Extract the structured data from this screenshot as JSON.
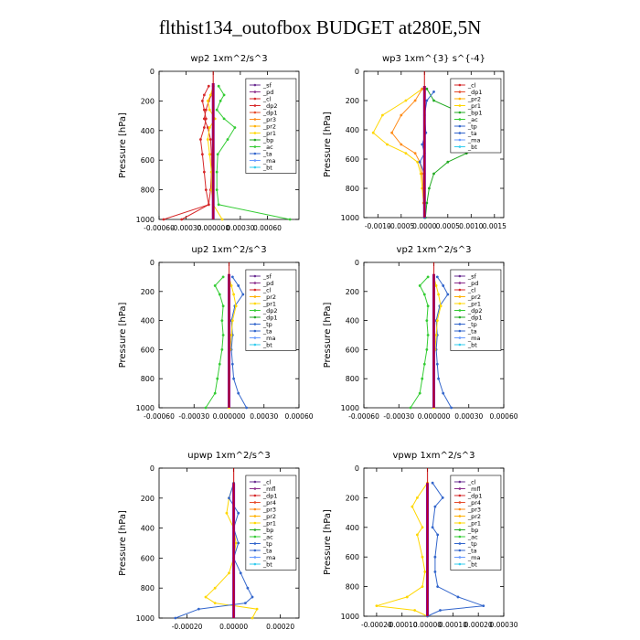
{
  "title": "flthist134_outofbox  BUDGET at280E,5N",
  "chart_data": [
    {
      "type": "line",
      "title": "wp2   1xm^2/s^3",
      "ylabel": "Pressure [hPa]",
      "ylim": [
        1000,
        0
      ],
      "yticks": [
        0,
        200,
        400,
        600,
        800,
        1000
      ],
      "xlim": [
        -0.0006,
        0.00095
      ],
      "xticks": [
        "-0.00060",
        "-0.00030",
        "0.000000",
        "0.00030",
        "0.00060"
      ],
      "xtick_values": [
        -0.0006,
        -0.0003,
        0,
        0.0003,
        0.0006
      ],
      "legend": [
        "_sf",
        "_pd",
        "_cl",
        "_dp2",
        "_dp1",
        "_pr3",
        "_pr2",
        "_pr1",
        "_bp",
        "_ac",
        "_ta",
        "_ma",
        "_bt"
      ],
      "legend_colors": [
        "#6a2c91",
        "#8b2c8b",
        "#d62728",
        "#d62728",
        "#e64a2a",
        "#ff8c1a",
        "#ffb000",
        "#ffd700",
        "#22aa22",
        "#33cc33",
        "#3366cc",
        "#6699ff",
        "#33ccee"
      ],
      "series": [
        {
          "name": "_dp1",
          "color": "#d62728",
          "x": [
            -5e-05,
            -0.0001,
            -0.00012,
            -0.0001,
            -8e-05,
            -0.0001,
            -0.00014,
            -0.00012,
            -0.0001,
            -8e-05,
            -5e-05,
            -0.00055
          ],
          "y": [
            100,
            160,
            200,
            260,
            320,
            380,
            460,
            560,
            680,
            800,
            900,
            1000
          ]
        },
        {
          "name": "_dp2",
          "color": "#d62728",
          "x": [
            0,
            -2e-05,
            -5e-05,
            -8e-05,
            -0.0001,
            -6e-05,
            -3e-05,
            -2e-05,
            -2e-05,
            -3e-05,
            -5e-05,
            -0.00035
          ],
          "y": [
            100,
            160,
            200,
            260,
            320,
            380,
            460,
            560,
            680,
            800,
            900,
            1000
          ]
        },
        {
          "name": "_pr1",
          "color": "#ffd700",
          "x": [
            0,
            -3e-05,
            -6e-05,
            -4e-05,
            2e-05,
            -4e-05,
            -6e-05,
            -4e-05,
            -2e-05,
            -2e-05,
            0,
            0.0001
          ],
          "y": [
            100,
            160,
            200,
            260,
            320,
            380,
            460,
            560,
            680,
            800,
            900,
            1000
          ]
        },
        {
          "name": "_ac",
          "color": "#33cc33",
          "x": [
            6e-05,
            0.00012,
            8e-05,
            4e-05,
            0.00012,
            0.00024,
            0.00016,
            5e-05,
            4e-05,
            4e-05,
            6e-05,
            0.00085
          ],
          "y": [
            100,
            160,
            200,
            260,
            320,
            380,
            460,
            560,
            680,
            800,
            900,
            1000
          ]
        },
        {
          "name": "_bt",
          "color": "#8b008b",
          "x": [
            0,
            0,
            0,
            0,
            0,
            0,
            0,
            0,
            0,
            0,
            0,
            0
          ],
          "y": [
            80,
            160,
            200,
            260,
            320,
            380,
            460,
            560,
            680,
            800,
            900,
            1000
          ]
        }
      ]
    },
    {
      "type": "line",
      "title": "wp3   1xm^{3} s^{-4}",
      "ylabel": "Pressure [hPa]",
      "ylim": [
        1000,
        0
      ],
      "yticks": [
        0,
        200,
        400,
        600,
        800,
        1000
      ],
      "xlim": [
        -0.0013,
        0.0017
      ],
      "xticks": [
        "-0.0010",
        "-0.0005",
        "0.0000",
        "0.0005",
        "0.0010",
        "0.0015"
      ],
      "xtick_values": [
        -0.001,
        -0.0005,
        0,
        0.0005,
        0.001,
        0.0015
      ],
      "legend": [
        "_cl",
        "_dp1",
        "_pr2",
        "_pr1",
        "_bp1",
        "_ac",
        "_tp",
        "_ta",
        "_ma",
        "_bt"
      ],
      "legend_colors": [
        "#d62728",
        "#e64a2a",
        "#ffb000",
        "#ffd700",
        "#22aa22",
        "#33cc33",
        "#3366cc",
        "#3366cc",
        "#6699ff",
        "#33ccee"
      ],
      "series": [
        {
          "name": "_pr1",
          "color": "#ffd700",
          "x": [
            -5e-05,
            -0.0004,
            -0.0009,
            -0.0011,
            -0.0008,
            -0.0004,
            -0.00015,
            -8e-05,
            -5e-05,
            -2e-05,
            0
          ],
          "y": [
            120,
            200,
            300,
            420,
            500,
            560,
            620,
            700,
            800,
            900,
            1000
          ]
        },
        {
          "name": "_pr2",
          "color": "#ff8c1a",
          "x": [
            -5e-05,
            -0.0002,
            -0.0005,
            -0.0007,
            -0.0005,
            -0.0002,
            -0.0001,
            -5e-05,
            -3e-05,
            -2e-05,
            0
          ],
          "y": [
            120,
            200,
            300,
            420,
            500,
            560,
            620,
            700,
            800,
            900,
            1000
          ]
        },
        {
          "name": "_ac",
          "color": "#22aa22",
          "x": [
            5e-05,
            0.0002,
            0.0009,
            0.0015,
            0.0012,
            0.0009,
            0.0005,
            0.0002,
            0.0001,
            5e-05,
            2e-05
          ],
          "y": [
            120,
            200,
            300,
            450,
            520,
            560,
            620,
            700,
            800,
            900,
            1000
          ]
        },
        {
          "name": "_ta",
          "color": "#3366cc",
          "x": [
            0.0002,
            5e-05,
            0,
            3e-05,
            -5e-05,
            0,
            -0.0001,
            0,
            0,
            0,
            0
          ],
          "y": [
            140,
            200,
            300,
            420,
            500,
            560,
            620,
            700,
            800,
            900,
            1000
          ]
        },
        {
          "name": "_bt",
          "color": "#8b008b",
          "x": [
            0,
            0,
            0,
            0,
            0,
            0,
            0,
            0,
            0,
            0,
            0
          ],
          "y": [
            100,
            200,
            300,
            420,
            500,
            560,
            620,
            700,
            800,
            900,
            1000
          ]
        }
      ]
    },
    {
      "type": "line",
      "title": "up2   1xm^2/s^3",
      "ylabel": "Pressure [hPa]",
      "ylim": [
        1000,
        0
      ],
      "yticks": [
        0,
        200,
        400,
        600,
        800,
        1000
      ],
      "xlim": [
        -0.0006,
        0.0006
      ],
      "xticks": [
        "-0.00060",
        "-0.00030",
        "0.000000",
        "0.00030",
        "0.00060"
      ],
      "xtick_values": [
        -0.0006,
        -0.0003,
        0,
        0.0003,
        0.0006
      ],
      "legend": [
        "_sf",
        "_pd",
        "_cl",
        "_pr2",
        "_pr1",
        "_dp2",
        "_dp1",
        "_tp",
        "_ta",
        "_ma",
        "_bt"
      ],
      "legend_colors": [
        "#6a2c91",
        "#8b2c8b",
        "#d62728",
        "#ffb000",
        "#ffd700",
        "#33cc33",
        "#22aa22",
        "#3366cc",
        "#3366cc",
        "#6699ff",
        "#33ccee"
      ],
      "series": [
        {
          "name": "_dp1",
          "color": "#33cc33",
          "x": [
            -5e-05,
            -0.00012,
            -8e-05,
            -5e-05,
            -6e-05,
            -5e-05,
            -6e-05,
            -8e-05,
            -0.0001,
            -0.00012,
            -0.0002
          ],
          "y": [
            100,
            160,
            220,
            300,
            400,
            500,
            600,
            700,
            800,
            900,
            1000
          ]
        },
        {
          "name": "_tp",
          "color": "#3366cc",
          "x": [
            3e-05,
            8e-05,
            0.00012,
            5e-05,
            2e-05,
            3e-05,
            2e-05,
            3e-05,
            4e-05,
            8e-05,
            0.00015
          ],
          "y": [
            100,
            160,
            220,
            300,
            400,
            500,
            600,
            700,
            800,
            900,
            1000
          ]
        },
        {
          "name": "_pr1",
          "color": "#ffd700",
          "x": [
            0,
            2e-05,
            4e-05,
            6e-05,
            3e-05,
            2e-05,
            1e-05,
            0,
            0,
            0,
            0
          ],
          "y": [
            100,
            160,
            220,
            300,
            400,
            500,
            600,
            700,
            800,
            900,
            1000
          ]
        },
        {
          "name": "_bt",
          "color": "#8b008b",
          "x": [
            0,
            0,
            0,
            0,
            0,
            0,
            0,
            0,
            0,
            0,
            0
          ],
          "y": [
            80,
            160,
            220,
            300,
            400,
            500,
            600,
            700,
            800,
            900,
            1000
          ]
        }
      ]
    },
    {
      "type": "line",
      "title": "vp2   1xm^2/s^3",
      "ylabel": "Pressure [hPa]",
      "ylim": [
        1000,
        0
      ],
      "yticks": [
        0,
        200,
        400,
        600,
        800,
        1000
      ],
      "xlim": [
        -0.0006,
        0.0006
      ],
      "xticks": [
        "-0.00060",
        "-0.00030",
        "0.000000",
        "0.00030",
        "0.00060"
      ],
      "xtick_values": [
        -0.0006,
        -0.0003,
        0,
        0.0003,
        0.0006
      ],
      "legend": [
        "_sf",
        "_pd",
        "_cl",
        "_pr2",
        "_pr1",
        "_dp2",
        "_dp1",
        "_tp",
        "_ta",
        "_ma",
        "_bt"
      ],
      "legend_colors": [
        "#6a2c91",
        "#8b2c8b",
        "#d62728",
        "#ffb000",
        "#ffd700",
        "#33cc33",
        "#22aa22",
        "#3366cc",
        "#3366cc",
        "#6699ff",
        "#33ccee"
      ],
      "series": [
        {
          "name": "_dp1",
          "color": "#33cc33",
          "x": [
            -5e-05,
            -0.00012,
            -8e-05,
            -5e-05,
            -6e-05,
            -5e-05,
            -6e-05,
            -8e-05,
            -0.0001,
            -0.00012,
            -0.0002
          ],
          "y": [
            100,
            160,
            220,
            300,
            400,
            500,
            600,
            700,
            800,
            900,
            1000
          ]
        },
        {
          "name": "_tp",
          "color": "#3366cc",
          "x": [
            3e-05,
            8e-05,
            0.00012,
            5e-05,
            2e-05,
            3e-05,
            2e-05,
            3e-05,
            4e-05,
            8e-05,
            0.00015
          ],
          "y": [
            100,
            160,
            220,
            300,
            400,
            500,
            600,
            700,
            800,
            900,
            1000
          ]
        },
        {
          "name": "_pr1",
          "color": "#ffd700",
          "x": [
            0,
            2e-05,
            4e-05,
            6e-05,
            3e-05,
            2e-05,
            1e-05,
            0,
            0,
            0,
            0
          ],
          "y": [
            100,
            160,
            220,
            300,
            400,
            500,
            600,
            700,
            800,
            900,
            1000
          ]
        },
        {
          "name": "_bt",
          "color": "#8b008b",
          "x": [
            0,
            0,
            0,
            0,
            0,
            0,
            0,
            0,
            0,
            0,
            0
          ],
          "y": [
            80,
            160,
            220,
            300,
            400,
            500,
            600,
            700,
            800,
            900,
            1000
          ]
        }
      ]
    },
    {
      "type": "line",
      "title": "upwp   1xm^2/s^3",
      "ylabel": "Pressure [hPa]",
      "ylim": [
        1000,
        0
      ],
      "yticks": [
        0,
        200,
        400,
        600,
        800,
        1000
      ],
      "xlim": [
        -0.00032,
        0.00028
      ],
      "xticks": [
        "-0.00020",
        "0.00000",
        "0.00020"
      ],
      "xtick_values": [
        -0.0002,
        0,
        0.0002
      ],
      "legend": [
        "_cl",
        "_mfl",
        "_dp1",
        "_pr4",
        "_pr3",
        "_pr2",
        "_pr1",
        "_bp",
        "_ac",
        "_tp",
        "_ta",
        "_ma",
        "_bt"
      ],
      "legend_colors": [
        "#6a2c91",
        "#8b2c8b",
        "#d62728",
        "#e64a2a",
        "#ff8c1a",
        "#ffb000",
        "#ffd700",
        "#22aa22",
        "#33cc33",
        "#3366cc",
        "#3366cc",
        "#6699ff",
        "#33ccee"
      ],
      "series": [
        {
          "name": "_pr1",
          "color": "#ffd700",
          "x": [
            0,
            -2e-05,
            -3e-05,
            0,
            1e-05,
            0,
            -2e-05,
            -8e-05,
            -0.00012,
            -8e-05,
            0.0001,
            8e-05
          ],
          "y": [
            100,
            200,
            300,
            400,
            500,
            600,
            700,
            800,
            860,
            900,
            940,
            1000
          ]
        },
        {
          "name": "_tp",
          "color": "#3366cc",
          "x": [
            0,
            -2e-05,
            2e-05,
            0,
            2e-05,
            0,
            3e-05,
            6e-05,
            8e-05,
            5e-05,
            -0.00015,
            -0.00025
          ],
          "y": [
            100,
            200,
            300,
            400,
            500,
            600,
            700,
            800,
            860,
            900,
            940,
            1000
          ]
        },
        {
          "name": "_bt",
          "color": "#8b008b",
          "x": [
            0,
            0,
            0,
            0,
            0,
            0,
            0,
            0,
            0,
            0,
            0,
            0
          ],
          "y": [
            100,
            200,
            300,
            400,
            500,
            600,
            700,
            800,
            860,
            900,
            940,
            1000
          ]
        }
      ]
    },
    {
      "type": "line",
      "title": "vpwp   1xm^2/s^3",
      "ylabel": "Pressure [hPa]",
      "ylim": [
        1000,
        0
      ],
      "yticks": [
        0,
        200,
        400,
        600,
        800,
        1000
      ],
      "xlim": [
        -0.00025,
        0.0003
      ],
      "xticks": [
        "-0.00020",
        "-0.00010",
        "0.00000",
        "0.00010",
        "0.00020",
        "0.00030"
      ],
      "xtick_values": [
        -0.0002,
        -0.0001,
        0,
        0.0001,
        0.0002,
        0.0003
      ],
      "legend": [
        "_cl",
        "_mfl",
        "_dp1",
        "_pr4",
        "_pr3",
        "_pr2",
        "_pr1",
        "_bp",
        "_ac",
        "_tp",
        "_ta",
        "_ma",
        "_bt"
      ],
      "legend_colors": [
        "#6a2c91",
        "#8b2c8b",
        "#d62728",
        "#e64a2a",
        "#ff8c1a",
        "#ffb000",
        "#ffd700",
        "#22aa22",
        "#33cc33",
        "#3366cc",
        "#3366cc",
        "#6699ff",
        "#33ccee"
      ],
      "series": [
        {
          "name": "_pr1",
          "color": "#ffd700",
          "x": [
            0,
            -4e-05,
            -6e-05,
            -2e-05,
            -4e-05,
            -2e-05,
            -1e-05,
            -2e-05,
            -8e-05,
            -0.0002,
            -5e-05,
            0
          ],
          "y": [
            100,
            200,
            260,
            400,
            450,
            600,
            700,
            800,
            870,
            930,
            960,
            1000
          ]
        },
        {
          "name": "_tp",
          "color": "#3366cc",
          "x": [
            2e-05,
            6e-05,
            3e-05,
            2e-05,
            4e-05,
            3e-05,
            3e-05,
            4e-05,
            0.00012,
            0.00022,
            5e-05,
            0
          ],
          "y": [
            100,
            200,
            260,
            400,
            450,
            600,
            700,
            800,
            870,
            930,
            960,
            1000
          ]
        },
        {
          "name": "_bt",
          "color": "#8b008b",
          "x": [
            0,
            0,
            0,
            0,
            0,
            0,
            0,
            0,
            0,
            0,
            0,
            0
          ],
          "y": [
            100,
            200,
            260,
            400,
            450,
            600,
            700,
            800,
            870,
            930,
            960,
            1000
          ]
        }
      ]
    }
  ]
}
